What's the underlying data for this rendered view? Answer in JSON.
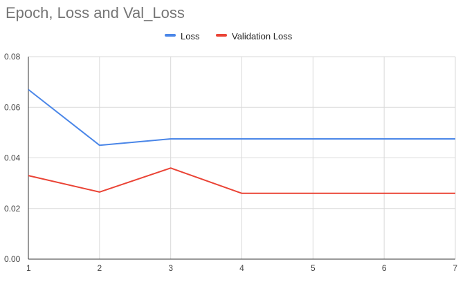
{
  "chart_data": {
    "type": "line",
    "title": "Epoch, Loss and Val_Loss",
    "xlabel": "",
    "ylabel": "",
    "x": [
      1,
      2,
      3,
      4,
      5,
      6,
      7
    ],
    "xlim": [
      1,
      7
    ],
    "ylim": [
      0,
      0.08
    ],
    "yticks": [
      "0.00",
      "0.02",
      "0.04",
      "0.06",
      "0.08"
    ],
    "xticks": [
      "1",
      "2",
      "3",
      "4",
      "5",
      "6",
      "7"
    ],
    "grid": true,
    "legend_position": "top-center",
    "series": [
      {
        "name": "Loss",
        "color": "#4a86e8",
        "values": [
          0.067,
          0.045,
          0.0475,
          0.0475,
          0.0475,
          0.0475,
          0.0475
        ]
      },
      {
        "name": "Validation Loss",
        "color": "#ea4335",
        "values": [
          0.033,
          0.0265,
          0.036,
          0.026,
          0.026,
          0.026,
          0.026
        ]
      }
    ]
  }
}
